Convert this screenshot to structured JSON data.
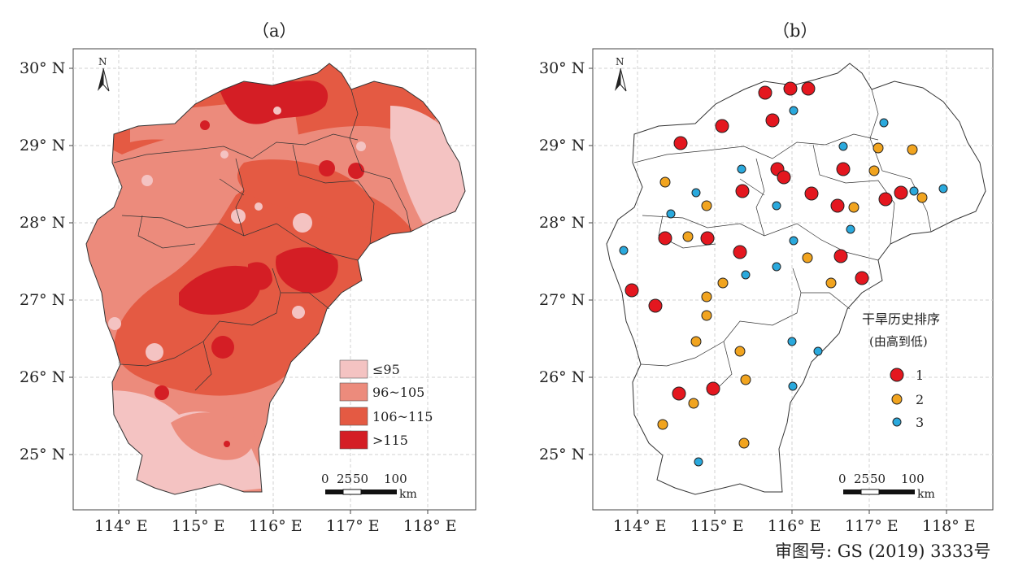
{
  "panels": [
    {
      "title": "（a）"
    },
    {
      "title": "（b）"
    }
  ],
  "axes": {
    "lat_labels": [
      "30° N",
      "29° N",
      "28° N",
      "27° N",
      "26° N",
      "25° N"
    ],
    "lon_labels": [
      "114° E",
      "115° E",
      "116° E",
      "117° E",
      "118° E"
    ]
  },
  "north_arrow": "N",
  "scale_bar": {
    "ticks": [
      "0",
      "25",
      "50",
      "100"
    ],
    "unit": "km"
  },
  "panel_a": {
    "legend": [
      {
        "label": "≤95",
        "color": "#f4c3c2"
      },
      {
        "label": "96~105",
        "color": "#ec8b7c"
      },
      {
        "label": "106~115",
        "color": "#e45a43"
      },
      {
        "label": ">115",
        "color": "#d41e25"
      }
    ]
  },
  "panel_b": {
    "legend_title": "干旱历史排序",
    "legend_subtitle": "(由高到低)",
    "legend": [
      {
        "label": "1",
        "color": "#e4171f"
      },
      {
        "label": "2",
        "color": "#f1a41f"
      },
      {
        "label": "3",
        "color": "#2aa9dd"
      }
    ]
  },
  "approval_number": "审图号: GS (2019) 3333号"
}
